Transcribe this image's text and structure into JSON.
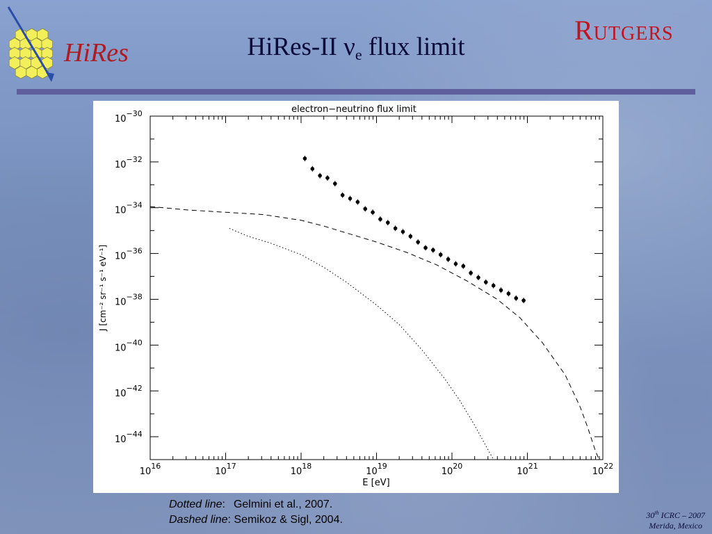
{
  "slide": {
    "title_main": "HiRes-II ν",
    "title_sub": "e",
    "title_rest": " flux limit",
    "logo_left_text": "HiRes",
    "logo_right_text": "Rutgers",
    "caption": {
      "line1_label": "Dotted line",
      "line1_sep": ":",
      "line1_text": "Gelmini et al., 2007.",
      "line2_label": "Dashed line",
      "line2_sep": ":",
      "line2_text": " Semikoz & Sigl, 2004."
    },
    "footer": {
      "num": "30",
      "sup": "th",
      "event": " ICRC – 2007",
      "place": "Merida, Mexico"
    },
    "colors": {
      "title": "#0b0b3a",
      "rule": "#5f5f9e",
      "rutgers": "#c4131f",
      "hex_fill": "#f2ef5a",
      "arrow": "#2a4ea8"
    }
  },
  "chart_data": {
    "type": "scatter",
    "title": "electron−neutrino flux limit",
    "xlabel": "E [eV]",
    "ylabel": "J [cm⁻² sr⁻¹ s⁻¹ eV⁻¹]",
    "x_scale": "log",
    "y_scale": "log",
    "xlim_log10": [
      16,
      22
    ],
    "ylim_log10": [
      -45,
      -30
    ],
    "x_ticks": [
      {
        "base": "10",
        "exp": "16"
      },
      {
        "base": "10",
        "exp": "17"
      },
      {
        "base": "10",
        "exp": "18"
      },
      {
        "base": "10",
        "exp": "19"
      },
      {
        "base": "10",
        "exp": "20"
      },
      {
        "base": "10",
        "exp": "21"
      },
      {
        "base": "10",
        "exp": "22"
      }
    ],
    "y_ticks": [
      {
        "base": "10",
        "exp": "−30"
      },
      {
        "base": "10",
        "exp": "−32"
      },
      {
        "base": "10",
        "exp": "−34"
      },
      {
        "base": "10",
        "exp": "−36"
      },
      {
        "base": "10",
        "exp": "−38"
      },
      {
        "base": "10",
        "exp": "−40"
      },
      {
        "base": "10",
        "exp": "−42"
      },
      {
        "base": "10",
        "exp": "−44"
      }
    ],
    "series": [
      {
        "style": "points",
        "log10_x": [
          18.05,
          18.15,
          18.25,
          18.35,
          18.45,
          18.55,
          18.65,
          18.75,
          18.85,
          18.95,
          19.05,
          19.15,
          19.25,
          19.35,
          19.45,
          19.55,
          19.65,
          19.75,
          19.85,
          19.95,
          20.05,
          20.15,
          20.25,
          20.35,
          20.45,
          20.55,
          20.65,
          20.75,
          20.85,
          20.95
        ],
        "log10_y": [
          -31.85,
          -32.3,
          -32.6,
          -32.7,
          -32.95,
          -33.45,
          -33.6,
          -33.75,
          -34.05,
          -34.2,
          -34.5,
          -34.65,
          -34.9,
          -35.05,
          -35.25,
          -35.5,
          -35.75,
          -35.85,
          -36.05,
          -36.25,
          -36.45,
          -36.55,
          -36.85,
          -37.05,
          -37.25,
          -37.4,
          -37.6,
          -37.75,
          -37.95,
          -38.05
        ]
      },
      {
        "style": "dashed",
        "log10_x": [
          16.0,
          16.5,
          17.0,
          17.5,
          18.0,
          18.3,
          18.6,
          19.0,
          19.4,
          19.8,
          20.2,
          20.6,
          20.9,
          21.2,
          21.5,
          21.7,
          21.8,
          21.9,
          21.95
        ],
        "log10_y": [
          -33.95,
          -34.1,
          -34.2,
          -34.3,
          -34.55,
          -34.8,
          -35.1,
          -35.5,
          -35.95,
          -36.5,
          -37.2,
          -38.0,
          -38.8,
          -39.9,
          -41.3,
          -42.7,
          -43.6,
          -44.6,
          -45.0
        ]
      },
      {
        "style": "dotted",
        "log10_x": [
          17.05,
          17.3,
          17.6,
          18.0,
          18.3,
          18.6,
          19.0,
          19.3,
          19.6,
          19.9,
          20.1,
          20.3,
          20.45,
          20.55,
          20.6
        ],
        "log10_y": [
          -34.9,
          -35.25,
          -35.55,
          -36.05,
          -36.6,
          -37.25,
          -38.25,
          -39.1,
          -40.2,
          -41.45,
          -42.4,
          -43.5,
          -44.4,
          -45.0,
          -45.0
        ]
      }
    ]
  }
}
